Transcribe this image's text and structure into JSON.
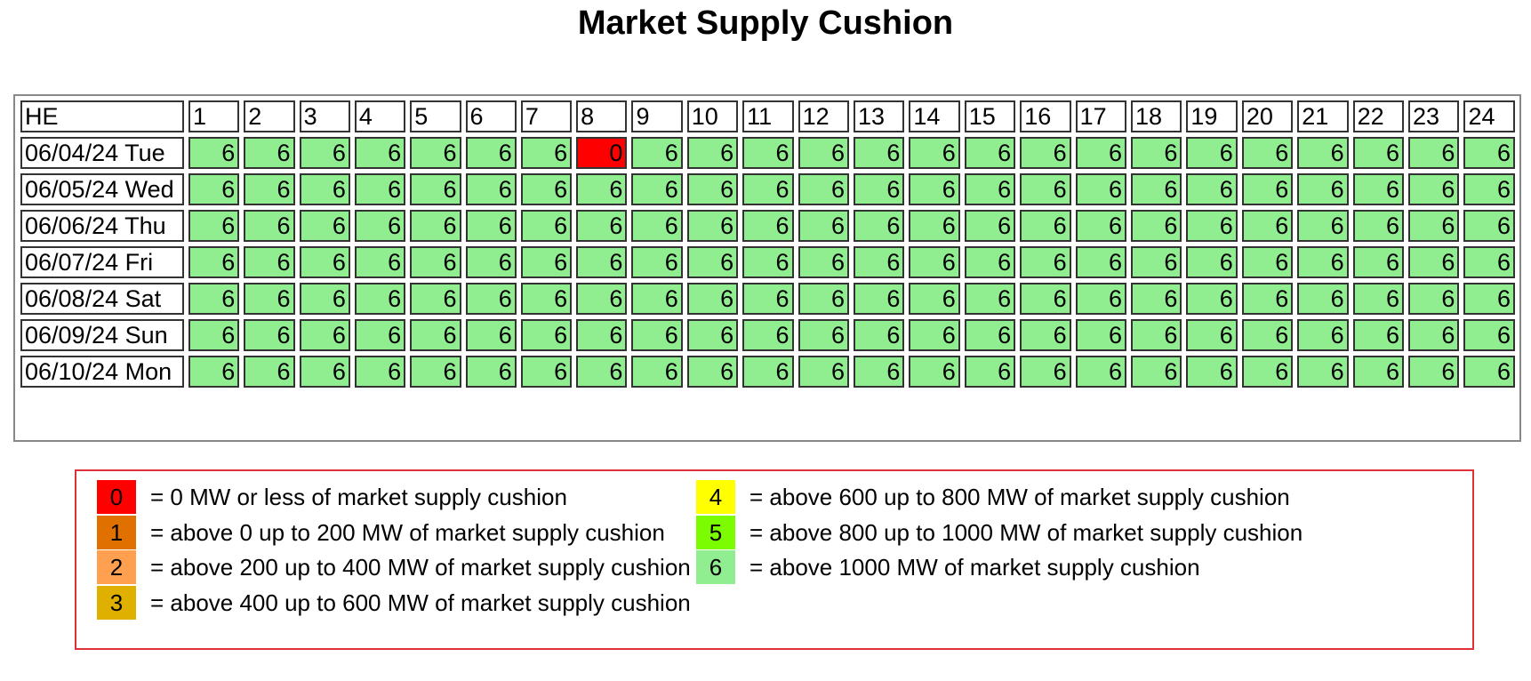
{
  "title": "Market Supply Cushion",
  "table": {
    "corner_label": "HE",
    "hours": [
      "1",
      "2",
      "3",
      "4",
      "5",
      "6",
      "7",
      "8",
      "9",
      "10",
      "11",
      "12",
      "13",
      "14",
      "15",
      "16",
      "17",
      "18",
      "19",
      "20",
      "21",
      "22",
      "23",
      "24"
    ],
    "rows": [
      {
        "label": "06/04/24 Tue",
        "values": [
          6,
          6,
          6,
          6,
          6,
          6,
          6,
          0,
          6,
          6,
          6,
          6,
          6,
          6,
          6,
          6,
          6,
          6,
          6,
          6,
          6,
          6,
          6,
          6
        ]
      },
      {
        "label": "06/05/24 Wed",
        "values": [
          6,
          6,
          6,
          6,
          6,
          6,
          6,
          6,
          6,
          6,
          6,
          6,
          6,
          6,
          6,
          6,
          6,
          6,
          6,
          6,
          6,
          6,
          6,
          6
        ]
      },
      {
        "label": "06/06/24 Thu",
        "values": [
          6,
          6,
          6,
          6,
          6,
          6,
          6,
          6,
          6,
          6,
          6,
          6,
          6,
          6,
          6,
          6,
          6,
          6,
          6,
          6,
          6,
          6,
          6,
          6
        ]
      },
      {
        "label": "06/07/24 Fri",
        "values": [
          6,
          6,
          6,
          6,
          6,
          6,
          6,
          6,
          6,
          6,
          6,
          6,
          6,
          6,
          6,
          6,
          6,
          6,
          6,
          6,
          6,
          6,
          6,
          6
        ]
      },
      {
        "label": "06/08/24 Sat",
        "values": [
          6,
          6,
          6,
          6,
          6,
          6,
          6,
          6,
          6,
          6,
          6,
          6,
          6,
          6,
          6,
          6,
          6,
          6,
          6,
          6,
          6,
          6,
          6,
          6
        ]
      },
      {
        "label": "06/09/24 Sun",
        "values": [
          6,
          6,
          6,
          6,
          6,
          6,
          6,
          6,
          6,
          6,
          6,
          6,
          6,
          6,
          6,
          6,
          6,
          6,
          6,
          6,
          6,
          6,
          6,
          6
        ]
      },
      {
        "label": "06/10/24 Mon",
        "values": [
          6,
          6,
          6,
          6,
          6,
          6,
          6,
          6,
          6,
          6,
          6,
          6,
          6,
          6,
          6,
          6,
          6,
          6,
          6,
          6,
          6,
          6,
          6,
          6
        ]
      }
    ]
  },
  "level_colors": {
    "0": "#ff0000",
    "1": "#e07000",
    "2": "#ffa050",
    "3": "#e0b000",
    "4": "#ffff00",
    "5": "#7cfc00",
    "6": "#90ee90"
  },
  "legend": [
    {
      "level": "0",
      "text": "= 0 MW or less of market supply cushion"
    },
    {
      "level": "1",
      "text": "= above 0 up to 200 MW of market supply cushion"
    },
    {
      "level": "2",
      "text": "= above 200 up to 400 MW of market supply cushion"
    },
    {
      "level": "3",
      "text": "= above 400 up to 600 MW of market supply cushion"
    },
    {
      "level": "4",
      "text": "= above 600 up to 800 MW of market supply cushion"
    },
    {
      "level": "5",
      "text": "= above 800 up to 1000 MW of market supply cushion"
    },
    {
      "level": "6",
      "text": "= above 1000 MW of market supply cushion"
    }
  ]
}
